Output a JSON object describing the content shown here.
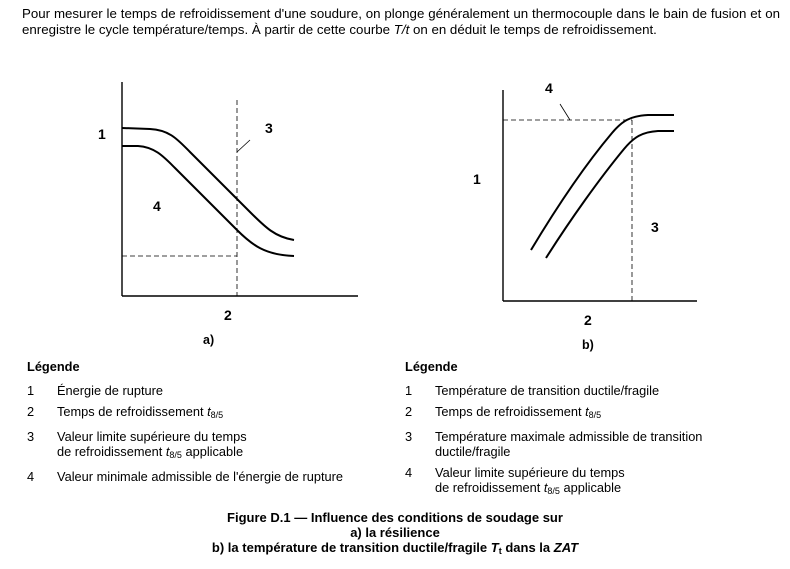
{
  "intro": {
    "text_before_italic": "Pour mesurer le temps de refroidissement d'une soudure, on plonge généralement un thermocouple dans le bain de fusion et on enregistre le cycle température/temps. À partir de cette courbe ",
    "italic": "T/t",
    "text_after_italic": " on en déduit le temps de refroidissement."
  },
  "figure_a": {
    "label_1": "1",
    "label_2": "2",
    "label_3": "3",
    "label_4": "4",
    "caption": "a)"
  },
  "figure_b": {
    "label_1": "1",
    "label_2": "2",
    "label_3": "3",
    "label_4": "4",
    "caption": "b)"
  },
  "legend_a": {
    "title": "Légende",
    "items": [
      {
        "n": "1",
        "text": "Énergie de rupture"
      },
      {
        "n": "2",
        "text_before": "Temps de refroidissement ",
        "t": "t",
        "sub": "8/5",
        "text_after": ""
      },
      {
        "n": "3",
        "text": "Valeur limite supérieure du temps",
        "line2_before": "de refroidissement ",
        "t": "t",
        "sub": "8/5",
        "line2_after": " applicable"
      },
      {
        "n": "4",
        "text": "Valeur minimale admissible de l'énergie de rupture"
      }
    ]
  },
  "legend_b": {
    "title": "Légende",
    "items": [
      {
        "n": "1",
        "text": "Température de transition ductile/fragile"
      },
      {
        "n": "2",
        "text_before": "Temps de refroidissement ",
        "t": "t",
        "sub": "8/5",
        "text_after": ""
      },
      {
        "n": "3",
        "text": "Température maximale admissible de transition",
        "line2": "ductile/fragile"
      },
      {
        "n": "4",
        "text": "Valeur limite supérieure du temps",
        "line2_before": "de refroidissement ",
        "t": "t",
        "sub": "8/5",
        "line2_after": " applicable"
      }
    ]
  },
  "figure_caption": {
    "line1": "Figure D.1 — Influence des conditions de soudage sur",
    "line2": "a) la résilience",
    "line3_before": "b) la température de transition ductile/fragile ",
    "line3_T": "T",
    "line3_sub": "t",
    "line3_mid": " dans la ",
    "line3_zat": "ZAT"
  }
}
